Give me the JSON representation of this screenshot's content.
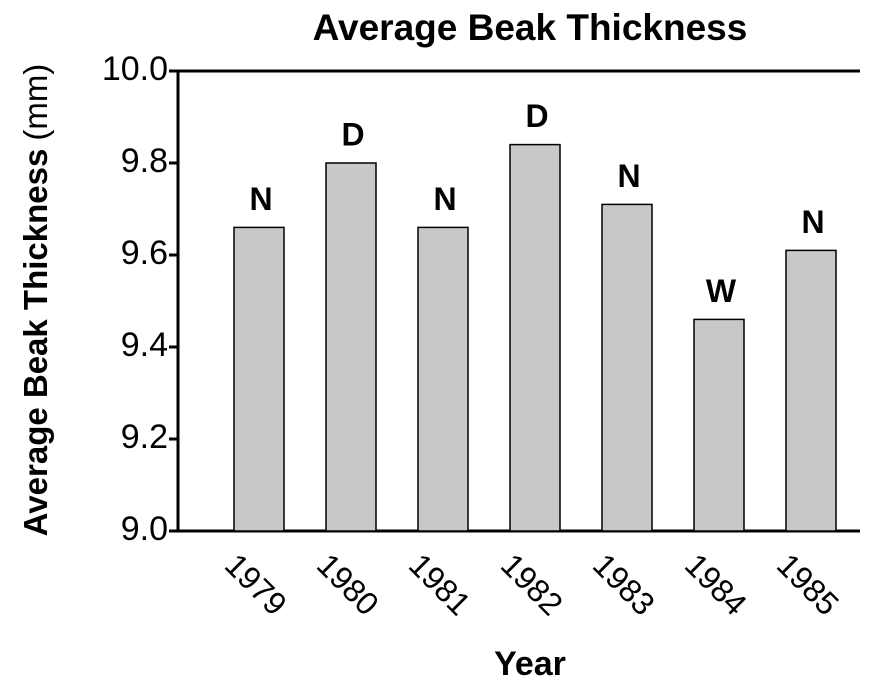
{
  "chart_data": {
    "type": "bar",
    "title": "Average Beak Thickness",
    "x_label": "Year",
    "y_label": "Average Beak Thickness",
    "y_unit": "(mm)",
    "categories": [
      "1979",
      "1980",
      "1981",
      "1982",
      "1983",
      "1984",
      "1985"
    ],
    "values": [
      9.66,
      9.8,
      9.66,
      9.84,
      9.71,
      9.46,
      9.61
    ],
    "annotations": [
      "N",
      "D",
      "N",
      "D",
      "N",
      "W",
      "N"
    ],
    "color": "#c8c8c8",
    "ylim": [
      9.0,
      10.0
    ],
    "yticks": [
      {
        "value": 9.0,
        "label": "9.0"
      },
      9.2,
      9.4,
      9.6,
      9.8,
      {
        "value": 10.0,
        "label": "10.0"
      }
    ],
    "grid": false
  }
}
